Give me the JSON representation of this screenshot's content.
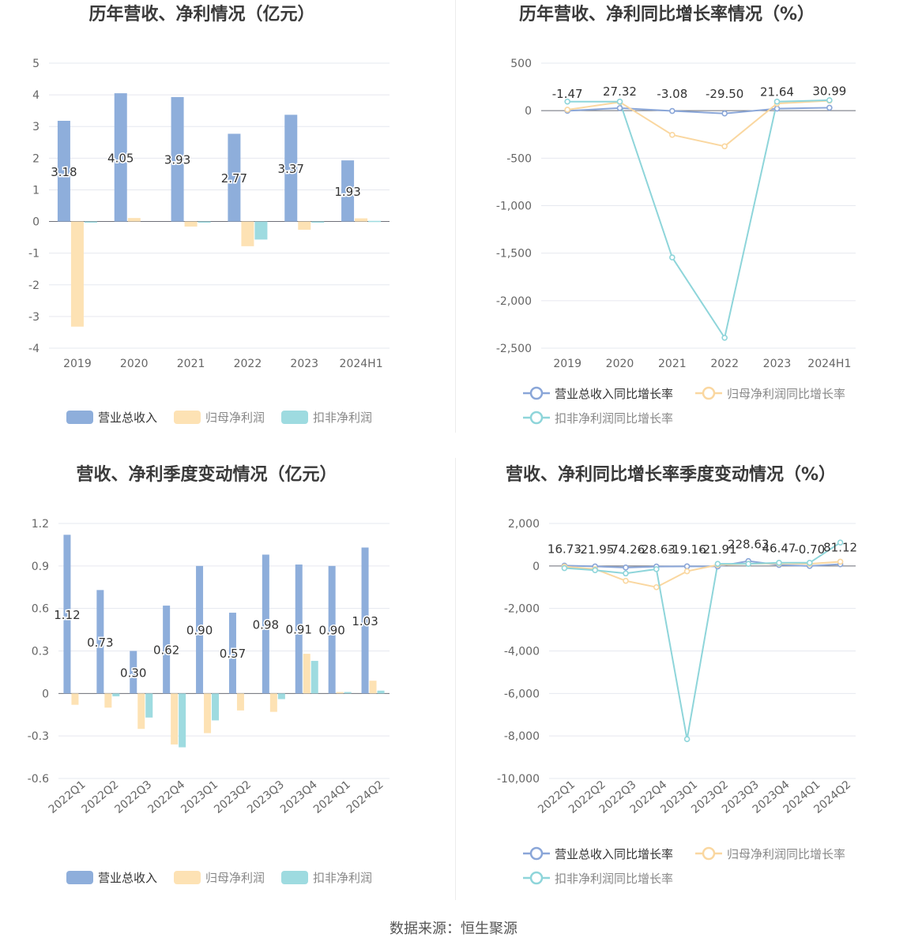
{
  "footer": {
    "source": "数据来源：恒生聚源"
  },
  "colors": {
    "revenue": "#8eaedb",
    "parent_profit": "#fde2b4",
    "nonrecurring_profit": "#9edbe0",
    "revenue_line": "#8aa6d8",
    "parent_line": "#fad7a0",
    "nonrecurring_line": "#8ed5da"
  },
  "chart_data": [
    {
      "id": "annual-values",
      "type": "bar",
      "title": "历年营收、净利情况（亿元）",
      "categories": [
        "2019",
        "2020",
        "2021",
        "2022",
        "2023",
        "2024H1"
      ],
      "ylim": [
        -4,
        5
      ],
      "yticks": [
        5,
        4,
        3,
        2,
        1,
        0,
        -1,
        -2,
        -3,
        -4
      ],
      "ytick_labels": [
        "5",
        "4",
        "3",
        "2",
        "1",
        "0",
        "-1",
        "-2",
        "-3",
        "-4"
      ],
      "series": [
        {
          "name": "营业总收入",
          "values": [
            3.18,
            4.05,
            3.93,
            2.77,
            3.37,
            1.93
          ],
          "labels": [
            "3.18",
            "4.05",
            "3.93",
            "2.77",
            "3.37",
            "1.93"
          ]
        },
        {
          "name": "归母净利润",
          "values": [
            -3.32,
            0.11,
            -0.16,
            -0.78,
            -0.26,
            0.1
          ]
        },
        {
          "name": "扣非净利润",
          "values": [
            -0.02,
            0.0,
            -0.01,
            -0.57,
            -0.01,
            0.02
          ]
        }
      ],
      "legend": "bottom",
      "grid": true
    },
    {
      "id": "annual-growth",
      "type": "line",
      "title": "历年营收、净利同比增长率情况（%）",
      "categories": [
        "2019",
        "2020",
        "2021",
        "2022",
        "2023",
        "2024H1"
      ],
      "ylim": [
        -2500,
        500
      ],
      "yticks": [
        500,
        0,
        -500,
        -1000,
        -1500,
        -2000,
        -2500
      ],
      "ytick_labels": [
        "500",
        "0",
        "-500",
        "-1,000",
        "-1,500",
        "-2,000",
        "-2,500"
      ],
      "series": [
        {
          "name": "营业总收入同比增长率",
          "values": [
            -1.47,
            27.32,
            -3.08,
            -29.5,
            21.64,
            30.99
          ],
          "labels": [
            "-1.47",
            "27.32",
            "-3.08",
            "-29.50",
            "21.64",
            "30.99"
          ]
        },
        {
          "name": "归母净利润同比增长率",
          "values": [
            10,
            90,
            -255,
            -375,
            75,
            105
          ]
        },
        {
          "name": "扣非净利润同比增长率",
          "values": [
            95,
            95,
            -1545,
            -2390,
            95,
            110
          ]
        }
      ],
      "legend": "bottom",
      "grid": true
    },
    {
      "id": "quarterly-values",
      "type": "bar",
      "title": "营收、净利季度变动情况（亿元）",
      "categories": [
        "2022Q1",
        "2022Q2",
        "2022Q3",
        "2022Q4",
        "2023Q1",
        "2023Q2",
        "2023Q3",
        "2023Q4",
        "2024Q1",
        "2024Q2"
      ],
      "ylim": [
        -0.6,
        1.2
      ],
      "yticks": [
        1.2,
        0.9,
        0.6,
        0.3,
        0,
        -0.3,
        -0.6
      ],
      "ytick_labels": [
        "1.2",
        "0.9",
        "0.6",
        "0.3",
        "0",
        "-0.3",
        "-0.6"
      ],
      "series": [
        {
          "name": "营业总收入",
          "values": [
            1.12,
            0.73,
            0.3,
            0.62,
            0.9,
            0.57,
            0.98,
            0.91,
            0.9,
            1.03
          ],
          "labels": [
            "1.12",
            "0.73",
            "0.30",
            "0.62",
            "0.90",
            "0.57",
            "0.98",
            "0.91",
            "0.90",
            "1.03"
          ]
        },
        {
          "name": "归母净利润",
          "values": [
            -0.08,
            -0.1,
            -0.25,
            -0.36,
            -0.28,
            -0.12,
            -0.13,
            0.28,
            0.01,
            0.09
          ]
        },
        {
          "name": "扣非净利润",
          "values": [
            0.0,
            -0.02,
            -0.17,
            -0.38,
            -0.19,
            0.0,
            -0.04,
            0.23,
            0.01,
            0.02
          ]
        }
      ],
      "legend": "bottom",
      "grid": true
    },
    {
      "id": "quarterly-growth",
      "type": "line",
      "title": "营收、净利同比增长率季度变动情况（%）",
      "categories": [
        "2022Q1",
        "2022Q2",
        "2022Q3",
        "2022Q4",
        "2023Q1",
        "2023Q2",
        "2023Q3",
        "2023Q4",
        "2024Q1",
        "2024Q2"
      ],
      "ylim": [
        -10000,
        2000
      ],
      "yticks": [
        2000,
        0,
        -2000,
        -4000,
        -6000,
        -8000,
        -10000
      ],
      "ytick_labels": [
        "2,000",
        "0",
        "-2,000",
        "-4,000",
        "-6,000",
        "-8,000",
        "-10,000"
      ],
      "series": [
        {
          "name": "营业总收入同比增长率",
          "values": [
            16.73,
            -21.95,
            -74.26,
            -28.63,
            -19.16,
            -21.91,
            228.63,
            46.47,
            -0.7,
            81.12
          ],
          "labels": [
            "16.73",
            "-21.95",
            "-74.26",
            "-28.63",
            "-19.16",
            "-21.91",
            "228.63",
            "46.47",
            "-0.70",
            "81.12"
          ]
        },
        {
          "name": "归母净利润同比增长率",
          "values": [
            -30,
            -150,
            -700,
            -1000,
            -250,
            50,
            100,
            120,
            100,
            200
          ]
        },
        {
          "name": "扣非净利润同比增长率",
          "values": [
            -100,
            -200,
            -350,
            -150,
            -8150,
            100,
            100,
            150,
            150,
            1100
          ]
        }
      ],
      "legend": "bottom",
      "grid": true
    }
  ]
}
